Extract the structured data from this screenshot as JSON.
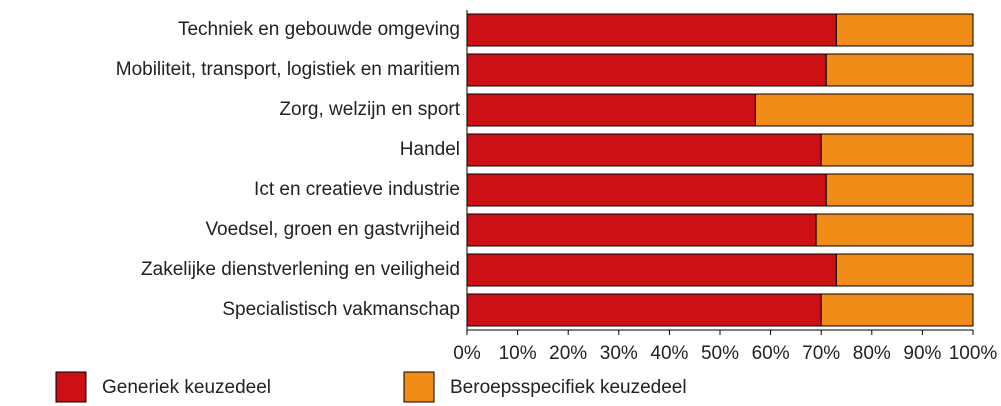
{
  "chart_data": {
    "type": "stacked-barh",
    "categories": [
      "Techniek en gebouwde omgeving",
      "Mobiliteit, transport, logistiek en maritiem",
      "Zorg, welzijn en sport",
      "Handel",
      "Ict en creatieve industrie",
      "Voedsel, groen en gastvrijheid",
      "Zakelijke dienstverlening en veiligheid",
      "Specialistisch vakmanschap"
    ],
    "series": [
      {
        "name": "Generiek keuzedeel",
        "color": "#cc1016",
        "values": [
          73,
          71,
          57,
          70,
          71,
          69,
          73,
          70
        ]
      },
      {
        "name": "Beroepsspecifiek keuzedeel",
        "color": "#f28c18",
        "values": [
          27,
          29,
          43,
          30,
          29,
          31,
          27,
          30
        ]
      }
    ],
    "xlim": [
      0,
      100
    ],
    "xticks": [
      {
        "value": 0,
        "label": "0%"
      },
      {
        "value": 10,
        "label": "10%"
      },
      {
        "value": 20,
        "label": "20%"
      },
      {
        "value": 30,
        "label": "30%"
      },
      {
        "value": 40,
        "label": "40%"
      },
      {
        "value": 50,
        "label": "50%"
      },
      {
        "value": 60,
        "label": "60%"
      },
      {
        "value": 70,
        "label": "70%"
      },
      {
        "value": 80,
        "label": "80%"
      },
      {
        "value": 90,
        "label": "90%"
      },
      {
        "value": 100,
        "label": "100%"
      }
    ],
    "legend": "bottom"
  }
}
